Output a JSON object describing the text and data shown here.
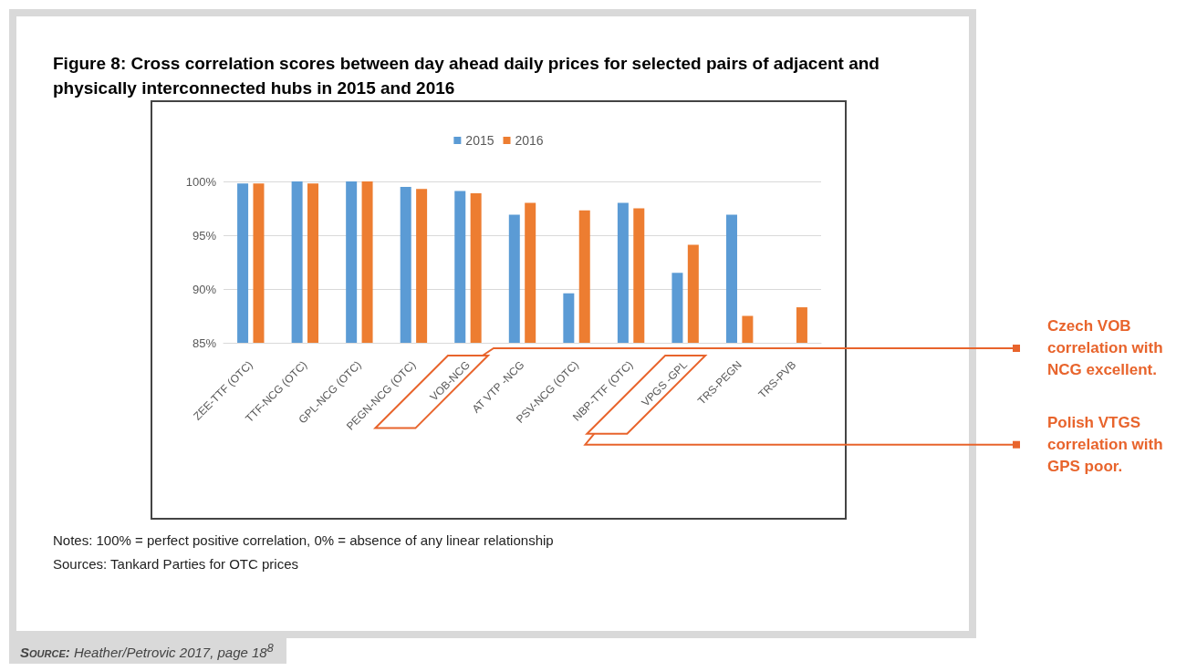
{
  "chart_data": {
    "type": "bar",
    "title": "Figure 8: Cross correlation scores between day ahead daily prices for selected pairs of adjacent and physically interconnected hubs in 2015 and 2016",
    "categories": [
      "ZEE-TTF (OTC)",
      "TTF-NCG (OTC)",
      "GPL-NCG (OTC)",
      "PEGN-NCG (OTC)",
      "VOB-NCG",
      "AT VTP -NCG",
      "PSV-NCG (OTC)",
      "NBP-TTF (OTC)",
      "VPGS -GPL",
      "TRS-PEGN",
      "TRS-PVB"
    ],
    "series": [
      {
        "name": "2015",
        "color": "#5b9bd5",
        "values": [
          99.8,
          100,
          100,
          99.5,
          99.1,
          96.9,
          89.6,
          98.0,
          91.5,
          96.9,
          null
        ]
      },
      {
        "name": "2016",
        "color": "#ed7d31",
        "values": [
          99.8,
          99.8,
          100,
          99.3,
          98.9,
          98.0,
          97.3,
          97.5,
          94.1,
          87.5,
          88.3
        ]
      }
    ],
    "ylim": [
      85,
      100
    ],
    "yticks": [
      {
        "value": 85,
        "label": "85%"
      },
      {
        "value": 90,
        "label": "90%"
      },
      {
        "value": 95,
        "label": "95%"
      },
      {
        "value": 100,
        "label": "100%"
      }
    ],
    "grid": "y",
    "legend": "top",
    "annotations": [
      "Czech VOB correlation with NCG excellent.",
      "Polish VTGS correlation with GPS poor.",
      "Notes: 100% = perfect positive correlation, 0% = absence of any linear relationship",
      "Sources: Tankard Parties for OTC prices",
      "Source: Heather/Petrovic 2017, page 18$^{8}$"
    ]
  }
}
